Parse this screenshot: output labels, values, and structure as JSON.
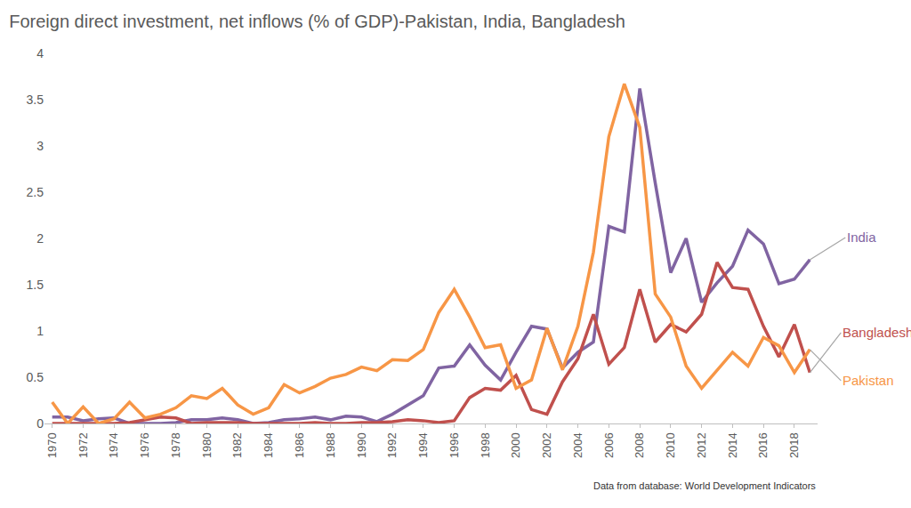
{
  "chart_data": {
    "type": "line",
    "title": "Foreign direct investment, net inflows (% of GDP)-Pakistan, India, Bangladesh",
    "note": "Data from database: World Development Indicators",
    "x": [
      1970,
      1971,
      1972,
      1973,
      1974,
      1975,
      1976,
      1977,
      1978,
      1979,
      1980,
      1981,
      1982,
      1983,
      1984,
      1985,
      1986,
      1987,
      1988,
      1989,
      1990,
      1991,
      1992,
      1993,
      1994,
      1995,
      1996,
      1997,
      1998,
      1999,
      2000,
      2001,
      2002,
      2003,
      2004,
      2005,
      2006,
      2007,
      2008,
      2009,
      2010,
      2011,
      2012,
      2013,
      2014,
      2015,
      2016,
      2017,
      2018,
      2019
    ],
    "series": [
      {
        "name": "India",
        "color": "#8064a2",
        "values": [
          0.07,
          0.07,
          0.03,
          0.05,
          0.06,
          0.0,
          0.0,
          0.0,
          0.01,
          0.04,
          0.04,
          0.06,
          0.04,
          0.0,
          0.01,
          0.04,
          0.05,
          0.07,
          0.04,
          0.08,
          0.07,
          0.02,
          0.1,
          0.2,
          0.3,
          0.6,
          0.62,
          0.85,
          0.63,
          0.47,
          0.77,
          1.05,
          1.02,
          0.6,
          0.77,
          0.88,
          2.13,
          2.07,
          3.62,
          2.6,
          1.63,
          2.0,
          1.31,
          1.52,
          1.7,
          2.09,
          1.94,
          1.51,
          1.56,
          1.77
        ]
      },
      {
        "name": "Bangladesh",
        "color": "#c0504d",
        "values": [
          0.0,
          0.0,
          0.0,
          0.0,
          0.0,
          0.01,
          0.04,
          0.07,
          0.06,
          0.0,
          0.01,
          0.01,
          0.01,
          0.0,
          0.0,
          0.0,
          0.0,
          0.01,
          0.0,
          0.0,
          0.01,
          0.01,
          0.02,
          0.04,
          0.03,
          0.01,
          0.03,
          0.28,
          0.38,
          0.36,
          0.52,
          0.15,
          0.1,
          0.45,
          0.7,
          1.18,
          0.64,
          0.82,
          1.45,
          0.88,
          1.07,
          0.99,
          1.18,
          1.74,
          1.47,
          1.45,
          1.05,
          0.72,
          1.07,
          0.55
        ]
      },
      {
        "name": "Pakistan",
        "color": "#f79646",
        "values": [
          0.23,
          0.0,
          0.18,
          0.0,
          0.05,
          0.23,
          0.06,
          0.1,
          0.17,
          0.3,
          0.27,
          0.38,
          0.2,
          0.1,
          0.17,
          0.42,
          0.33,
          0.4,
          0.49,
          0.53,
          0.61,
          0.57,
          0.69,
          0.68,
          0.8,
          1.2,
          1.45,
          1.15,
          0.82,
          0.85,
          0.38,
          0.47,
          1.03,
          0.58,
          1.05,
          1.85,
          3.1,
          3.67,
          3.2,
          1.4,
          1.15,
          0.62,
          0.38,
          0.58,
          0.77,
          0.62,
          0.93,
          0.84,
          0.55,
          0.8
        ]
      }
    ],
    "xlim": [
      1969.5,
      2019.5
    ],
    "xticks": [
      1970,
      1972,
      1974,
      1976,
      1978,
      1980,
      1982,
      1984,
      1986,
      1988,
      1990,
      1992,
      1994,
      1996,
      1998,
      2000,
      2002,
      2004,
      2006,
      2008,
      2010,
      2012,
      2014,
      2016,
      2018
    ],
    "ylim": [
      0,
      4
    ],
    "yticks": [
      0,
      0.5,
      1,
      1.5,
      2,
      2.5,
      3,
      3.5,
      4
    ],
    "grid": false,
    "legend": false
  }
}
